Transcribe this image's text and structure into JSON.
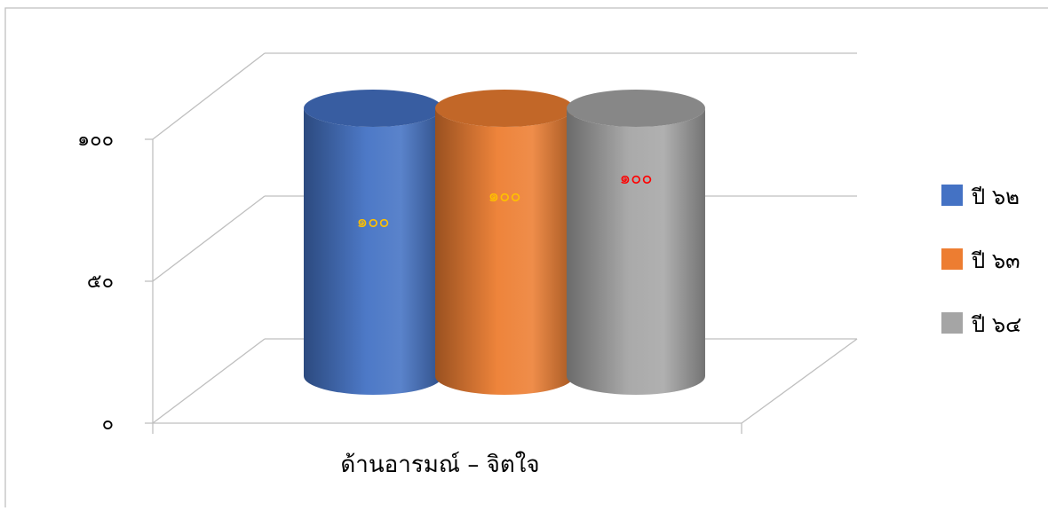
{
  "chart_data": {
    "type": "bar",
    "style": "3d-cylinder",
    "title": "",
    "xlabel": "",
    "ylabel": "",
    "ylim": [
      0,
      100
    ],
    "yticks": [
      {
        "value": 0,
        "label": "๐"
      },
      {
        "value": 50,
        "label": "๕๐"
      },
      {
        "value": 100,
        "label": "๑๐๐"
      }
    ],
    "categories": [
      "ด้านอารมณ์ – จิตใจ"
    ],
    "series": [
      {
        "name": "ปี ๖๒",
        "values": [
          100
        ],
        "value_labels": [
          "๑๐๐"
        ],
        "color": "#4472C4",
        "label_color": "#FFC000"
      },
      {
        "name": "ปี ๖๓",
        "values": [
          100
        ],
        "value_labels": [
          "๑๐๐"
        ],
        "color": "#ED7D31",
        "label_color": "#FFC000"
      },
      {
        "name": "ปี ๖๔",
        "values": [
          100
        ],
        "value_labels": [
          "๑๐๐"
        ],
        "color": "#A5A5A5",
        "label_color": "#FF0000"
      }
    ],
    "grid": true,
    "legend_position": "right"
  }
}
